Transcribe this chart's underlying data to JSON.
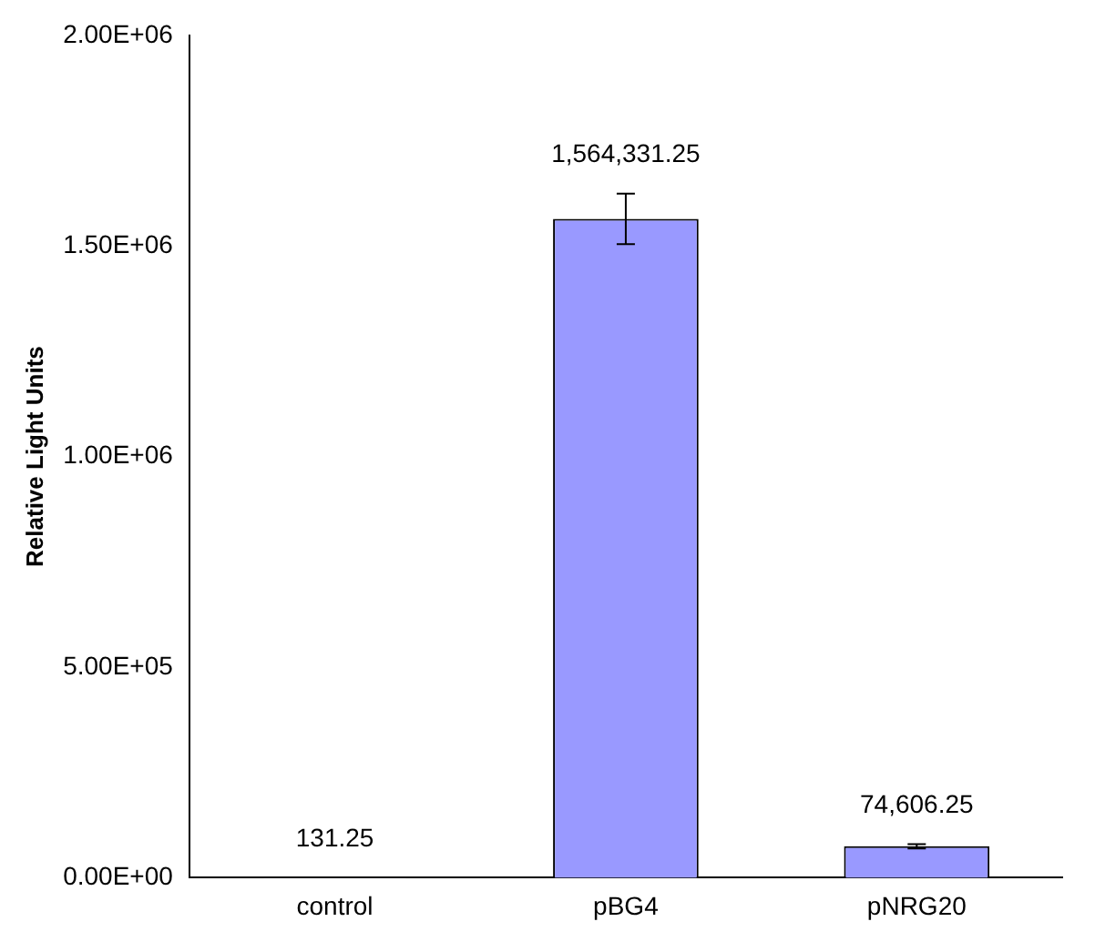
{
  "chart_data": {
    "type": "bar",
    "ylabel": "Relative Light Units",
    "categories": [
      "control",
      "pBG4",
      "pNRG20"
    ],
    "values": [
      131.25,
      1564331.25,
      74606.25
    ],
    "value_labels": [
      "131.25",
      "1,564,331.25",
      "74,606.25"
    ],
    "errors": [
      null,
      60000,
      5000
    ],
    "color": "#9999ff",
    "ylim": [
      0,
      2000000
    ],
    "yticks": [
      {
        "value": 0,
        "label": "0.00E+00"
      },
      {
        "value": 500000,
        "label": "5.00E+05"
      },
      {
        "value": 1000000,
        "label": "1.00E+06"
      },
      {
        "value": 1500000,
        "label": "1.50E+06"
      },
      {
        "value": 2000000,
        "label": "2.00E+06"
      }
    ],
    "grid": false,
    "legend": false
  }
}
